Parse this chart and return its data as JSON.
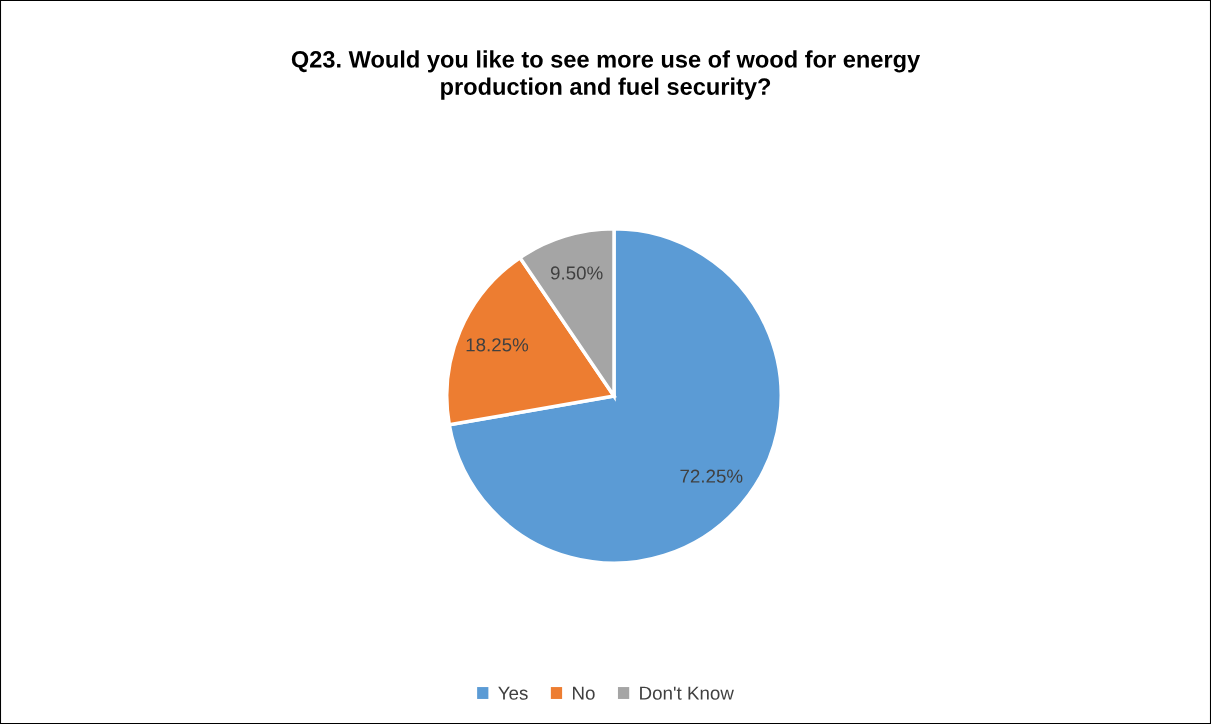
{
  "chart_data": {
    "type": "pie",
    "title": "Q23. Would you like to see more use of wood for energy\nproduction and fuel security?",
    "categories": [
      "Yes",
      "No",
      "Don't Know"
    ],
    "values": [
      72.25,
      18.25,
      9.5
    ],
    "colors": [
      "#5b9bd5",
      "#ed7d31",
      "#a5a5a5"
    ],
    "value_labels": [
      "72.25%",
      "18.25%",
      "9.50%"
    ],
    "legend": "bottom"
  }
}
